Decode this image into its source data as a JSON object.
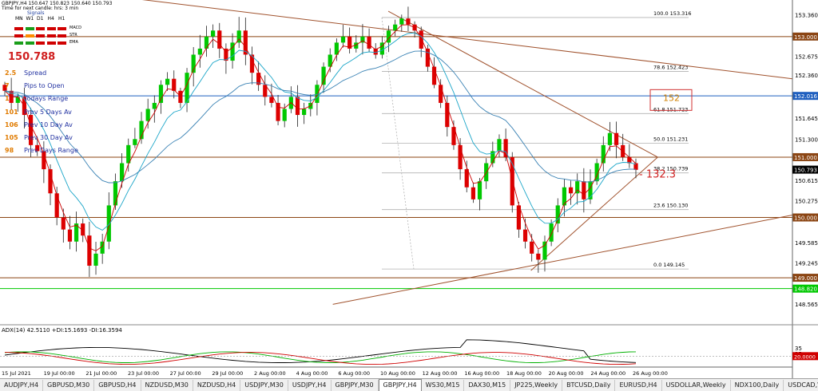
{
  "window": {
    "title_line1": "GBPJPY,H4  150.647 150.823 150.640 150.793",
    "title_line2": "Time for next candle: hrs: 3 min"
  },
  "indicator_panel": {
    "label": "Signals",
    "timeframes": [
      "MN",
      "W1",
      "D1",
      "H4",
      "H1"
    ],
    "rows": [
      {
        "name": "MACD",
        "colors": [
          "#d00000",
          "#1a9e1a",
          "#d00000",
          "#d00000",
          "#d00000"
        ]
      },
      {
        "name": "STR",
        "colors": [
          "#d00000",
          "#ff8c00",
          "#d00000",
          "#d00000",
          "#d00000"
        ]
      },
      {
        "name": "EMA",
        "colors": [
          "#1a9e1a",
          "#1a9e1a",
          "#d00000",
          "#d00000",
          "#d00000"
        ]
      }
    ]
  },
  "big_price": "150.788",
  "stats": [
    {
      "value": "2.5",
      "label": "Spread"
    },
    {
      "value": "7",
      "label": "Pips to Open"
    },
    {
      "value": "1",
      "label": "Todays Range"
    },
    {
      "value": "101",
      "label": "Prev 5 Days Av"
    },
    {
      "value": "106",
      "label": "Prev 10 Day Av"
    },
    {
      "value": "105",
      "label": "Prev 30 Day Av"
    },
    {
      "value": "98",
      "label": "Prev Days Range"
    }
  ],
  "annotations": {
    "target_box": "152",
    "pips_label": "- 132.3"
  },
  "adx_label": "ADX(14) 42.5110 +DI:15.1693 -DI:16.3594",
  "tabs": [
    "AUDJPY,H4",
    "GBPUSD,M30",
    "GBPUSD,H4",
    "NZDUSD,M30",
    "NZDUSD,H4",
    "USDJPY,M30",
    "USDJPY,H4",
    "GBPJPY,M30",
    "GBPJPY,H4",
    "WS30,M15",
    "DAX30,M15",
    "JP225,Weekly",
    "BTCUSD,Daily",
    "EURUSD,H4",
    "USDOLLAR,Weekly",
    "NDX100,Daily",
    "USDCAD,We..."
  ],
  "active_tab": 8,
  "colors": {
    "bull": "#00c800",
    "bear": "#dd0000",
    "trendline": "#a0522d",
    "level": "#8b4513",
    "ma_fast": "#cc0000",
    "ma_mid": "#1aa5c8",
    "ma_slow": "#3a82b4",
    "fib": "#b0b0b0",
    "price_tag_bg": "#000000"
  },
  "chart_data": {
    "type": "candlestick",
    "symbol": "GBPJPY",
    "timeframe": "H4",
    "ylim": [
      148.26,
      153.58
    ],
    "y_ticks": [
      "153.360",
      "152.675",
      "152.360",
      "151.645",
      "151.300",
      "150.615",
      "150.275",
      "149.585",
      "149.245",
      "148.565"
    ],
    "x_ticks": [
      "15 Jul 2021",
      "19 Jul 00:00",
      "21 Jul 00:00",
      "23 Jul 00:00",
      "27 Jul 00:00",
      "29 Jul 00:00",
      "2 Aug 00:00",
      "4 Aug 00:00",
      "6 Aug 00:00",
      "10 Aug 00:00",
      "12 Aug 00:00",
      "16 Aug 00:00",
      "18 Aug 00:00",
      "20 Aug 00:00",
      "24 Aug 00:00",
      "26 Aug 00:00"
    ],
    "horizontal_levels": [
      {
        "price": 153.0,
        "label": "153.000",
        "color": "#8b4513"
      },
      {
        "price": 152.016,
        "label": "152.016",
        "color": "#1f5fbf"
      },
      {
        "price": 151.0,
        "label": "151.000",
        "color": "#8b4513"
      },
      {
        "price": 150.0,
        "label": "150.000",
        "color": "#8b4513"
      },
      {
        "price": 149.0,
        "label": "149.000",
        "color": "#8b4513"
      },
      {
        "price": 148.82,
        "label": "148.820",
        "color": "#00c800"
      }
    ],
    "current_price": {
      "price": 150.793,
      "label": "150.793"
    },
    "fib_levels": [
      {
        "level": "100.0",
        "price": 153.316
      },
      {
        "level": "78.6",
        "price": 152.423
      },
      {
        "level": "61.8",
        "price": 151.723
      },
      {
        "level": "50.0",
        "price": 151.231
      },
      {
        "level": "38.2",
        "price": 150.739
      },
      {
        "level": "23.6",
        "price": 150.13
      },
      {
        "level": "0.0",
        "price": 149.145
      }
    ],
    "trendlines": [
      {
        "from": [
          0,
          153.9
        ],
        "to": [
          1.0,
          152.3
        ]
      },
      {
        "from": [
          0.49,
          153.42
        ],
        "to": [
          0.83,
          151.0
        ]
      },
      {
        "from": [
          0.67,
          149.12
        ],
        "to": [
          0.83,
          151.0
        ]
      },
      {
        "from": [
          0.42,
          148.56
        ],
        "to": [
          1.0,
          150.04
        ]
      }
    ],
    "candles_close": [
      152.1,
      151.9,
      152.0,
      151.7,
      151.2,
      151.1,
      150.8,
      150.4,
      150.0,
      149.8,
      149.6,
      149.9,
      149.7,
      149.2,
      149.4,
      149.6,
      150.2,
      150.6,
      150.9,
      151.2,
      151.3,
      151.6,
      151.8,
      151.9,
      152.2,
      152.3,
      152.1,
      151.9,
      152.4,
      152.7,
      152.8,
      153.0,
      153.1,
      152.8,
      152.6,
      152.9,
      153.1,
      152.7,
      152.4,
      152.2,
      152.0,
      151.9,
      151.6,
      151.8,
      152.0,
      151.7,
      151.8,
      151.9,
      152.2,
      152.5,
      152.7,
      152.9,
      153.0,
      152.8,
      152.9,
      153.0,
      152.8,
      152.7,
      152.9,
      153.1,
      153.2,
      153.3,
      153.2,
      153.1,
      152.8,
      152.5,
      152.2,
      151.9,
      151.5,
      151.2,
      150.8,
      150.5,
      150.3,
      150.6,
      150.9,
      151.1,
      151.3,
      151.0,
      150.2,
      149.8,
      149.6,
      149.4,
      149.3,
      149.6,
      149.9,
      150.2,
      150.5,
      150.4,
      150.6,
      150.3,
      150.6,
      150.9,
      151.2,
      151.4,
      151.2,
      151.0,
      150.9,
      150.79
    ],
    "adx_ylim": [
      0,
      60
    ],
    "adx_ticks": [
      "35",
      "25",
      "20.0000"
    ]
  }
}
